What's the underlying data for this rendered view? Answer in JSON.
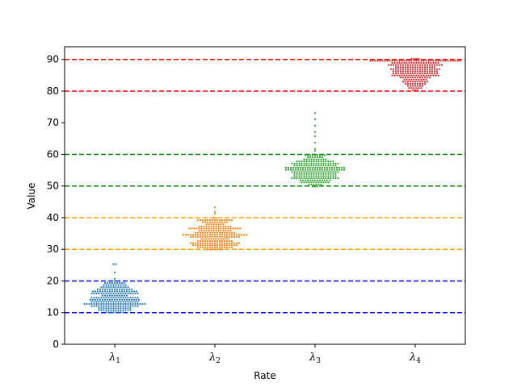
{
  "chart_data": {
    "type": "scatter",
    "subtype": "swarm",
    "title": "",
    "xlabel": "Rate",
    "ylabel": "Value",
    "ylim": [
      0,
      94
    ],
    "yticks": [
      0,
      10,
      20,
      30,
      40,
      50,
      60,
      70,
      80,
      90
    ],
    "grid": false,
    "categories": [
      {
        "symbol": "λ",
        "sub": "1"
      },
      {
        "symbol": "λ",
        "sub": "2"
      },
      {
        "symbol": "λ",
        "sub": "3"
      },
      {
        "symbol": "λ",
        "sub": "4"
      }
    ],
    "series": [
      {
        "color": "#1f77b4",
        "range": [
          10,
          20
        ],
        "points": 240
      },
      {
        "color": "#ff7f0e",
        "range": [
          30,
          40
        ],
        "points": 240
      },
      {
        "color": "#2ca02c",
        "range": [
          50,
          60
        ],
        "points": 240
      },
      {
        "color": "#d62728",
        "range": [
          80,
          90
        ],
        "points": 240
      }
    ],
    "outliers": [
      [
        25,
        25,
        23,
        21
      ],
      [
        43,
        42,
        41
      ],
      [
        73,
        71,
        69,
        67,
        66,
        64,
        62,
        61
      ],
      []
    ],
    "reference_lines": [
      {
        "y": 10,
        "color": "#0000ff",
        "style": "dashed"
      },
      {
        "y": 20,
        "color": "#0000ff",
        "style": "dashed"
      },
      {
        "y": 30,
        "color": "#ffa500",
        "style": "dashed"
      },
      {
        "y": 40,
        "color": "#ffa500",
        "style": "dashed"
      },
      {
        "y": 50,
        "color": "#008000",
        "style": "dashed"
      },
      {
        "y": 60,
        "color": "#008000",
        "style": "dashed"
      },
      {
        "y": 80,
        "color": "#ff0000",
        "style": "dashed"
      },
      {
        "y": 90,
        "color": "#ff0000",
        "style": "dashed"
      }
    ]
  }
}
